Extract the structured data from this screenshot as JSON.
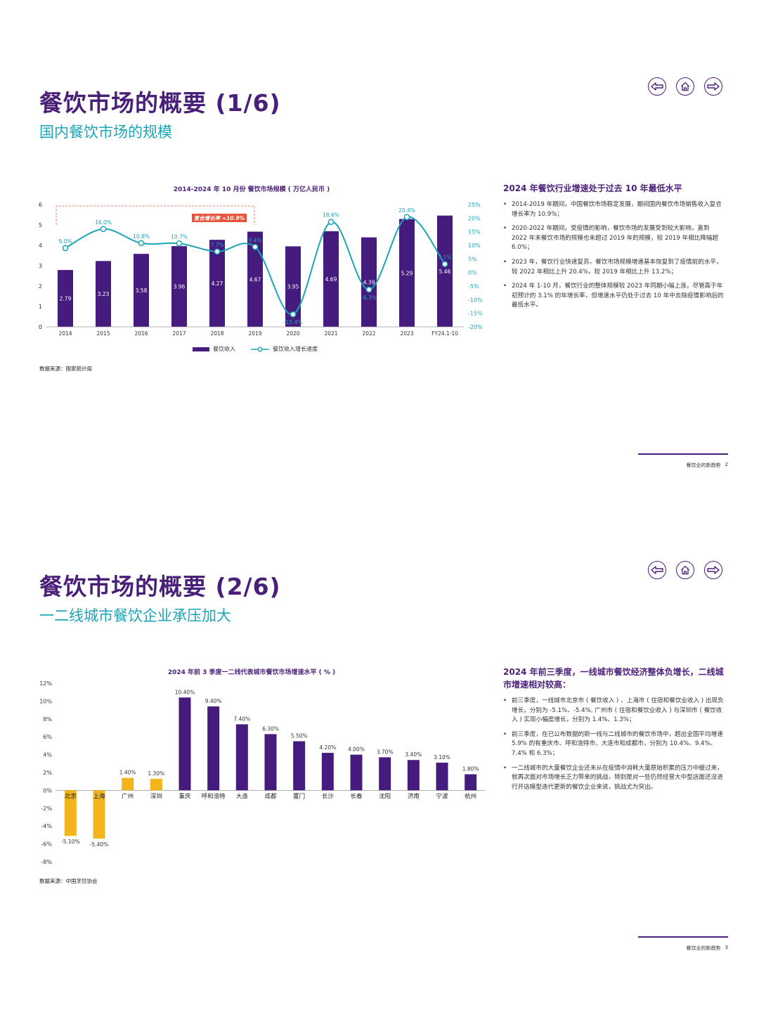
{
  "page1": {
    "title": "餐饮市场的概要 (1/6)",
    "subtitle": "国内餐饮市场的规模",
    "nav": {
      "prev_icon": "arrow-left-icon",
      "home_icon": "home-icon",
      "next_icon": "arrow-right-icon"
    },
    "chart_title": "2014-2024 年 10 月份 餐饮市场规模 ( 万亿人民币 )",
    "cagr_label": "复合增长率 =10.9%",
    "legend": {
      "bar": "餐饮收入",
      "line": "餐饮收入增长速度"
    },
    "source": "数据来源：国家统计局",
    "side_heading": "2024 年餐饮行业增速处于过去 10 年最低水平",
    "bullets": [
      "2014-2019 年期间，中国餐饮市场稳定发展，期间国内餐饮市场销售收入复合增长率为 10.9%；",
      "2020-2022 年期间，受疫情的影响，餐饮市场的发展受到较大影响，直到 2022 年末餐饮市场的规模也未超过 2019 年的规模，较 2019 年相比降幅超 6.0%；",
      "2023 年，餐饮行业快速复苏，餐饮市场规模增速基本恢复到了疫情前的水平，较 2022 年相比上升 20.4%，较 2019 年相比上升 13.2%；",
      "2024 年 1-10 月，餐饮行业的整体规模较 2023 年同期小幅上涨，尽管高于年初预计的 3.1% 的年增长率，但增速水平仍处于过去 10 年中去除疫情影响后的最低水平。"
    ],
    "footer_text": "餐饮业的新趋势",
    "page_number": "2"
  },
  "page2": {
    "title": "餐饮市场的概要 (2/6)",
    "subtitle": "一二线城市餐饮企业承压加大",
    "nav": {
      "prev_icon": "arrow-left-icon",
      "home_icon": "home-icon",
      "next_icon": "arrow-right-icon"
    },
    "chart_title": "2024 年前 3 季度一二线代表城市餐饮市场增速水平 ( % )",
    "source": "数据来源：中国烹饪协会",
    "side_heading": "2024 年前三季度，一线城市餐饮经济整体负增长，二线城市增速相对较高：",
    "bullets": [
      "前三季度，一线城市北京市 ( 餐饮收入 ) 、上海市 ( 住宿和餐饮业收入 ) 出现负增长，分别为 -5.1%、-5.4%, 广州市 ( 住宿和餐饮业收入 ) 与深圳市 ( 餐饮收入 ) 实现小幅度增长，分别为 1.4%、1.3%；",
      "前三季度，在已公布数据的新一线与二线城市的餐饮市场中，超出全国平均增速 5.9% 的有重庆市、呼和浩特市、大连市和成都市，分别为 10.4%、9.4%、7.4% 和 6.3%；",
      "一二线城市的大量餐饮企业还未从在疫情中消耗大量原始积累的压力中缓过来，就再次面对市场增长乏力带来的挑战，特别是对一些仍然经营大中型店面还没进行开店模型迭代更新的餐饮企业来说，挑战尤为突出。"
    ],
    "footer_text": "餐饮业的新趋势",
    "page_number": "3"
  },
  "chart_data": [
    {
      "type": "bar",
      "title": "2014-2024 年 10 月份 餐饮市场规模 ( 万亿人民币 )",
      "categories": [
        "2014",
        "2015",
        "2016",
        "2017",
        "2018",
        "2019",
        "2020",
        "2021",
        "2022",
        "2023",
        "FY24.1-10"
      ],
      "series": [
        {
          "name": "餐饮收入",
          "type": "bar",
          "values": [
            2.79,
            3.23,
            3.58,
            3.96,
            4.27,
            4.67,
            3.95,
            4.69,
            4.39,
            5.29,
            5.46
          ],
          "labels": [
            "2.79",
            "3.23",
            "3.58",
            "3.96",
            "4.27",
            "4.67",
            "3.95",
            "4.69",
            "4.39",
            "5.29",
            "5.46"
          ]
        },
        {
          "name": "餐饮收入增长速度",
          "type": "line",
          "values": [
            9.0,
            16.0,
            10.8,
            10.7,
            7.7,
            9.4,
            -15.4,
            18.6,
            -6.3,
            20.4,
            3.1
          ],
          "labels": [
            "9.0%",
            "16.0%",
            "10.8%",
            "10.7%",
            "7.7%",
            "9.4%",
            "-15.4%",
            "18.6%",
            "-6.3%",
            "20.4%",
            "3.1%"
          ]
        }
      ],
      "ylim": [
        0,
        6
      ],
      "yticks": [
        "0",
        "1",
        "2",
        "3",
        "4",
        "5",
        "6"
      ],
      "y2lim": [
        -20,
        25
      ],
      "y2ticks": [
        "-20%",
        "-15%",
        "-10%",
        "-5%",
        "0%",
        "5%",
        "10%",
        "15%",
        "20%",
        "25%"
      ],
      "colors": {
        "bar": "#461b7e",
        "line": "#1aa5b8",
        "cagr": "#e8523a"
      }
    },
    {
      "type": "bar",
      "title": "2024 年前 3 季度一二线代表城市餐饮市场增速水平 ( % )",
      "categories": [
        "北京",
        "上海",
        "广州",
        "深圳",
        "重庆",
        "呼和浩特",
        "大连",
        "成都",
        "厦门",
        "长沙",
        "长春",
        "沈阳",
        "济南",
        "宁波",
        "杭州"
      ],
      "values": [
        -5.1,
        -5.4,
        1.4,
        1.3,
        10.4,
        9.4,
        7.4,
        6.3,
        5.5,
        4.2,
        4.0,
        3.7,
        3.4,
        3.1,
        1.8
      ],
      "labels": [
        "-5.10%",
        "-5.40%",
        "1.40%",
        "1.30%",
        "10.40%",
        "9.40%",
        "7.40%",
        "6.30%",
        "5.50%",
        "4.20%",
        "4.00%",
        "3.70%",
        "3.40%",
        "3.10%",
        "1.80%"
      ],
      "tier": [
        "first",
        "first",
        "first",
        "first",
        "second",
        "second",
        "second",
        "second",
        "second",
        "second",
        "second",
        "second",
        "second",
        "second",
        "second"
      ],
      "ylim": [
        -8,
        12
      ],
      "yticks": [
        "-8%",
        "-6%",
        "-4%",
        "-2%",
        "0%",
        "2%",
        "4%",
        "6%",
        "8%",
        "10%",
        "12%"
      ],
      "colors": {
        "first": "#f2b51b",
        "second": "#461b7e"
      }
    }
  ]
}
